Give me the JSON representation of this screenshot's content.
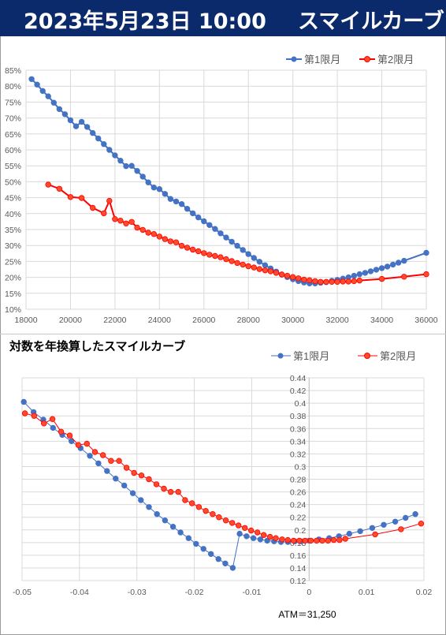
{
  "header": {
    "date": "2023年5月23日 10:00",
    "title": "スマイルカーブ"
  },
  "chart1": {
    "legend": [
      "第1限月",
      "第2限月"
    ]
  },
  "chart2": {
    "title": "対数を年換算したスマイルカーブ",
    "legend": [
      "第1限月",
      "第2限月"
    ],
    "atm_label": "ATM＝31,250"
  },
  "colors": {
    "series1": "#4472c4",
    "series2": "#ff0000",
    "series2_fill": "#ff4b2b",
    "header_bg": "#0b2a6b"
  },
  "chart_data": [
    {
      "type": "line",
      "xlim": [
        18000,
        36000
      ],
      "ylim": [
        0.1,
        0.85
      ],
      "xticks": [
        "18000",
        "20000",
        "22000",
        "24000",
        "26000",
        "28000",
        "30000",
        "32000",
        "34000",
        "36000"
      ],
      "yticks": [
        "10%",
        "15%",
        "20%",
        "25%",
        "30%",
        "35%",
        "40%",
        "45%",
        "50%",
        "55%",
        "60%",
        "65%",
        "70%",
        "75%",
        "80%",
        "85%"
      ],
      "grid": true,
      "legend_position": "top-right",
      "series": [
        {
          "name": "第1限月",
          "points": [
            [
              18250,
              0.822
            ],
            [
              18500,
              0.805
            ],
            [
              18750,
              0.785
            ],
            [
              19000,
              0.768
            ],
            [
              19250,
              0.748
            ],
            [
              19500,
              0.728
            ],
            [
              19750,
              0.712
            ],
            [
              20000,
              0.693
            ],
            [
              20250,
              0.674
            ],
            [
              20500,
              0.688
            ],
            [
              20750,
              0.672
            ],
            [
              21000,
              0.653
            ],
            [
              21250,
              0.636
            ],
            [
              21500,
              0.618
            ],
            [
              21750,
              0.6
            ],
            [
              22000,
              0.583
            ],
            [
              22250,
              0.566
            ],
            [
              22500,
              0.549
            ],
            [
              22750,
              0.55
            ],
            [
              23000,
              0.534
            ],
            [
              23250,
              0.516
            ],
            [
              23500,
              0.498
            ],
            [
              23750,
              0.482
            ],
            [
              24000,
              0.477
            ],
            [
              24250,
              0.462
            ],
            [
              24500,
              0.446
            ],
            [
              24750,
              0.438
            ],
            [
              25000,
              0.43
            ],
            [
              25250,
              0.415
            ],
            [
              25500,
              0.401
            ],
            [
              25750,
              0.388
            ],
            [
              26000,
              0.376
            ],
            [
              26250,
              0.364
            ],
            [
              26500,
              0.352
            ],
            [
              26750,
              0.338
            ],
            [
              27000,
              0.325
            ],
            [
              27250,
              0.312
            ],
            [
              27500,
              0.299
            ],
            [
              27750,
              0.286
            ],
            [
              28000,
              0.273
            ],
            [
              28250,
              0.261
            ],
            [
              28500,
              0.249
            ],
            [
              28750,
              0.238
            ],
            [
              29000,
              0.228
            ],
            [
              29250,
              0.218
            ],
            [
              29500,
              0.209
            ],
            [
              29750,
              0.201
            ],
            [
              30000,
              0.194
            ],
            [
              30250,
              0.188
            ],
            [
              30500,
              0.184
            ],
            [
              30750,
              0.181
            ],
            [
              31000,
              0.181
            ],
            [
              31250,
              0.183
            ],
            [
              31500,
              0.185
            ],
            [
              31750,
              0.189
            ],
            [
              32000,
              0.192
            ],
            [
              32250,
              0.196
            ],
            [
              32500,
              0.2
            ],
            [
              32750,
              0.205
            ],
            [
              33000,
              0.21
            ],
            [
              33250,
              0.214
            ],
            [
              33500,
              0.219
            ],
            [
              33750,
              0.224
            ],
            [
              34000,
              0.229
            ],
            [
              34250,
              0.234
            ],
            [
              34500,
              0.24
            ],
            [
              34750,
              0.246
            ],
            [
              35000,
              0.252
            ],
            [
              36000,
              0.277
            ]
          ]
        },
        {
          "name": "第2限月",
          "points": [
            [
              19000,
              0.491
            ],
            [
              19500,
              0.478
            ],
            [
              20000,
              0.452
            ],
            [
              20500,
              0.449
            ],
            [
              21000,
              0.418
            ],
            [
              21500,
              0.401
            ],
            [
              21750,
              0.44
            ],
            [
              22000,
              0.383
            ],
            [
              22250,
              0.378
            ],
            [
              22500,
              0.369
            ],
            [
              22750,
              0.374
            ],
            [
              23000,
              0.356
            ],
            [
              23250,
              0.349
            ],
            [
              23500,
              0.34
            ],
            [
              23750,
              0.336
            ],
            [
              24000,
              0.328
            ],
            [
              24250,
              0.32
            ],
            [
              24500,
              0.313
            ],
            [
              24750,
              0.31
            ],
            [
              25000,
              0.299
            ],
            [
              25250,
              0.293
            ],
            [
              25500,
              0.287
            ],
            [
              25750,
              0.282
            ],
            [
              26000,
              0.276
            ],
            [
              26250,
              0.271
            ],
            [
              26500,
              0.267
            ],
            [
              26750,
              0.263
            ],
            [
              27000,
              0.257
            ],
            [
              27250,
              0.251
            ],
            [
              27500,
              0.245
            ],
            [
              27750,
              0.24
            ],
            [
              28000,
              0.235
            ],
            [
              28250,
              0.231
            ],
            [
              28500,
              0.226
            ],
            [
              28750,
              0.222
            ],
            [
              29000,
              0.219
            ],
            [
              29250,
              0.214
            ],
            [
              29500,
              0.209
            ],
            [
              29750,
              0.205
            ],
            [
              30000,
              0.201
            ],
            [
              30250,
              0.197
            ],
            [
              30500,
              0.193
            ],
            [
              30750,
              0.191
            ],
            [
              31000,
              0.188
            ],
            [
              31250,
              0.186
            ],
            [
              31500,
              0.186
            ],
            [
              31750,
              0.186
            ],
            [
              32000,
              0.186
            ],
            [
              32250,
              0.187
            ],
            [
              32500,
              0.187
            ],
            [
              32750,
              0.188
            ],
            [
              33000,
              0.19
            ],
            [
              34000,
              0.195
            ],
            [
              35000,
              0.202
            ],
            [
              36000,
              0.21
            ]
          ]
        }
      ]
    },
    {
      "type": "line",
      "xlim": [
        -0.05,
        0.02
      ],
      "ylim": [
        0.12,
        0.44
      ],
      "xticks": [
        "-0.05",
        "-0.04",
        "-0.03",
        "-0.02",
        "-0.01",
        "0",
        "0.01",
        "0.02"
      ],
      "yticks": [
        "0.12",
        "0.14",
        "0.16",
        "0.18",
        "0.2",
        "0.22",
        "0.24",
        "0.26",
        "0.28",
        "0.3",
        "0.32",
        "0.34",
        "0.36",
        "0.38",
        "0.4",
        "0.42",
        "0.44"
      ],
      "grid": true,
      "legend_position": "top-right",
      "series": [
        {
          "name": "第1限月",
          "points": [
            [
              -0.0497,
              0.402
            ],
            [
              -0.048,
              0.386
            ],
            [
              -0.0463,
              0.374
            ],
            [
              -0.0446,
              0.361
            ],
            [
              -0.043,
              0.35
            ],
            [
              -0.0414,
              0.34
            ],
            [
              -0.0398,
              0.329
            ],
            [
              -0.0382,
              0.317
            ],
            [
              -0.0367,
              0.305
            ],
            [
              -0.0352,
              0.293
            ],
            [
              -0.0337,
              0.281
            ],
            [
              -0.0322,
              0.27
            ],
            [
              -0.0307,
              0.258
            ],
            [
              -0.0293,
              0.247
            ],
            [
              -0.0279,
              0.236
            ],
            [
              -0.0265,
              0.225
            ],
            [
              -0.0251,
              0.215
            ],
            [
              -0.0237,
              0.205
            ],
            [
              -0.0224,
              0.196
            ],
            [
              -0.021,
              0.187
            ],
            [
              -0.0197,
              0.178
            ],
            [
              -0.0184,
              0.17
            ],
            [
              -0.0171,
              0.162
            ],
            [
              -0.0158,
              0.154
            ],
            [
              -0.0146,
              0.147
            ],
            [
              -0.0133,
              0.14
            ],
            [
              -0.0121,
              0.194
            ],
            [
              -0.0109,
              0.19
            ],
            [
              -0.0097,
              0.187
            ],
            [
              -0.0085,
              0.185
            ],
            [
              -0.0073,
              0.183
            ],
            [
              -0.0061,
              0.182
            ],
            [
              -0.0049,
              0.181
            ],
            [
              -0.0037,
              0.181
            ],
            [
              -0.0025,
              0.182
            ],
            [
              -0.0014,
              0.182
            ],
            [
              0.0,
              0.183
            ],
            [
              0.0017,
              0.185
            ],
            [
              0.0035,
              0.187
            ],
            [
              0.0052,
              0.19
            ],
            [
              0.007,
              0.194
            ],
            [
              0.0089,
              0.198
            ],
            [
              0.011,
              0.203
            ],
            [
              0.013,
              0.208
            ],
            [
              0.015,
              0.213
            ],
            [
              0.0168,
              0.219
            ],
            [
              0.0185,
              0.225
            ]
          ]
        },
        {
          "name": "第2限月",
          "points": [
            [
              -0.0495,
              0.384
            ],
            [
              -0.0479,
              0.38
            ],
            [
              -0.0462,
              0.368
            ],
            [
              -0.0447,
              0.375
            ],
            [
              -0.0432,
              0.355
            ],
            [
              -0.0417,
              0.349
            ],
            [
              -0.0402,
              0.334
            ],
            [
              -0.0387,
              0.336
            ],
            [
              -0.0373,
              0.323
            ],
            [
              -0.0359,
              0.318
            ],
            [
              -0.0345,
              0.309
            ],
            [
              -0.0331,
              0.309
            ],
            [
              -0.0318,
              0.298
            ],
            [
              -0.0305,
              0.29
            ],
            [
              -0.0292,
              0.286
            ],
            [
              -0.0279,
              0.28
            ],
            [
              -0.0266,
              0.272
            ],
            [
              -0.0253,
              0.265
            ],
            [
              -0.0241,
              0.26
            ],
            [
              -0.0228,
              0.26
            ],
            [
              -0.0216,
              0.247
            ],
            [
              -0.0204,
              0.242
            ],
            [
              -0.0192,
              0.236
            ],
            [
              -0.018,
              0.23
            ],
            [
              -0.0168,
              0.225
            ],
            [
              -0.0157,
              0.22
            ],
            [
              -0.0145,
              0.215
            ],
            [
              -0.0134,
              0.211
            ],
            [
              -0.0123,
              0.207
            ],
            [
              -0.0112,
              0.203
            ],
            [
              -0.0101,
              0.199
            ],
            [
              -0.009,
              0.196
            ],
            [
              -0.0079,
              0.192
            ],
            [
              -0.0068,
              0.189
            ],
            [
              -0.0058,
              0.187
            ],
            [
              -0.0047,
              0.185
            ],
            [
              -0.0037,
              0.184
            ],
            [
              -0.0027,
              0.183
            ],
            [
              -0.0017,
              0.183
            ],
            [
              -0.0007,
              0.183
            ],
            [
              0.0003,
              0.183
            ],
            [
              0.0013,
              0.183
            ],
            [
              0.0023,
              0.183
            ],
            [
              0.0033,
              0.183
            ],
            [
              0.0043,
              0.184
            ],
            [
              0.0053,
              0.184
            ],
            [
              0.0063,
              0.186
            ],
            [
              0.0115,
              0.193
            ],
            [
              0.016,
              0.201
            ],
            [
              0.0195,
              0.21
            ]
          ]
        }
      ]
    }
  ]
}
